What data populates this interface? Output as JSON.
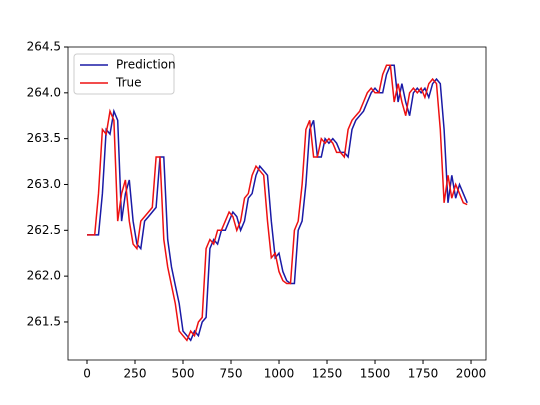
{
  "chart_data": {
    "type": "line",
    "x": [
      0,
      20,
      40,
      60,
      80,
      100,
      120,
      140,
      160,
      180,
      200,
      220,
      240,
      260,
      280,
      300,
      320,
      340,
      360,
      380,
      400,
      420,
      440,
      460,
      480,
      500,
      520,
      540,
      560,
      580,
      600,
      620,
      640,
      660,
      680,
      700,
      720,
      740,
      760,
      780,
      800,
      820,
      840,
      860,
      880,
      900,
      920,
      940,
      960,
      980,
      1000,
      1020,
      1040,
      1060,
      1080,
      1100,
      1120,
      1140,
      1160,
      1180,
      1200,
      1220,
      1240,
      1260,
      1280,
      1300,
      1320,
      1340,
      1360,
      1380,
      1400,
      1420,
      1440,
      1460,
      1480,
      1500,
      1520,
      1540,
      1560,
      1580,
      1600,
      1620,
      1640,
      1660,
      1680,
      1700,
      1720,
      1740,
      1760,
      1780,
      1800,
      1820,
      1840,
      1860,
      1880,
      1900,
      1920,
      1940,
      1960,
      1980
    ],
    "series": [
      {
        "name": "Prediction",
        "color": "#1a1aa6",
        "values": [
          262.45,
          262.45,
          262.45,
          262.45,
          262.9,
          263.6,
          263.55,
          263.8,
          263.7,
          262.6,
          262.9,
          263.05,
          262.6,
          262.35,
          262.3,
          262.6,
          262.65,
          262.7,
          262.75,
          263.3,
          263.3,
          262.4,
          262.1,
          261.9,
          261.7,
          261.4,
          261.35,
          261.3,
          261.4,
          261.35,
          261.5,
          261.55,
          262.3,
          262.4,
          262.35,
          262.5,
          262.5,
          262.6,
          262.7,
          262.65,
          262.5,
          262.6,
          262.85,
          262.9,
          263.1,
          263.2,
          263.15,
          263.1,
          262.6,
          262.2,
          262.25,
          262.05,
          261.95,
          261.92,
          261.92,
          262.5,
          262.6,
          263.0,
          263.6,
          263.7,
          263.3,
          263.3,
          263.5,
          263.45,
          263.5,
          263.45,
          263.35,
          263.35,
          263.3,
          263.6,
          263.7,
          263.75,
          263.8,
          263.9,
          264.0,
          264.05,
          264.0,
          264.0,
          264.2,
          264.3,
          264.3,
          263.9,
          264.1,
          263.9,
          263.75,
          264.0,
          264.05,
          264.0,
          264.05,
          263.95,
          264.1,
          264.15,
          264.1,
          263.6,
          262.8,
          263.1,
          262.85,
          263.0,
          262.9,
          262.8
        ]
      },
      {
        "name": "True",
        "color": "#ee1111",
        "values": [
          262.45,
          262.45,
          262.45,
          262.9,
          263.6,
          263.55,
          263.8,
          263.7,
          262.6,
          262.9,
          263.05,
          262.6,
          262.35,
          262.3,
          262.6,
          262.65,
          262.7,
          262.75,
          263.3,
          263.3,
          262.4,
          262.1,
          261.9,
          261.7,
          261.4,
          261.35,
          261.3,
          261.4,
          261.35,
          261.5,
          261.55,
          262.3,
          262.4,
          262.35,
          262.5,
          262.5,
          262.6,
          262.7,
          262.65,
          262.5,
          262.6,
          262.85,
          262.9,
          263.1,
          263.2,
          263.15,
          263.1,
          262.6,
          262.2,
          262.25,
          262.05,
          261.95,
          261.92,
          261.92,
          262.5,
          262.6,
          263.0,
          263.6,
          263.7,
          263.3,
          263.3,
          263.5,
          263.45,
          263.5,
          263.45,
          263.35,
          263.35,
          263.3,
          263.6,
          263.7,
          263.75,
          263.8,
          263.9,
          264.0,
          264.05,
          264.0,
          264.0,
          264.2,
          264.3,
          264.3,
          263.9,
          264.1,
          263.9,
          263.75,
          264.0,
          264.05,
          264.0,
          264.05,
          263.95,
          264.1,
          264.15,
          264.1,
          263.6,
          262.8,
          263.1,
          262.85,
          263.0,
          262.9,
          262.8,
          262.78
        ]
      }
    ],
    "xlim": [
      -99,
      2078
    ],
    "xticks": [
      0,
      250,
      500,
      750,
      1000,
      1250,
      1500,
      1750,
      2000
    ],
    "ylim": [
      261.085,
      264.5
    ],
    "yticks": [
      261.5,
      {
        "value": 262,
        "label": "262.0"
      },
      262.5,
      {
        "value": 263,
        "label": "263.0"
      },
      263.5,
      {
        "value": 264,
        "label": "264.0"
      },
      264.5
    ],
    "legend": "upper left"
  }
}
